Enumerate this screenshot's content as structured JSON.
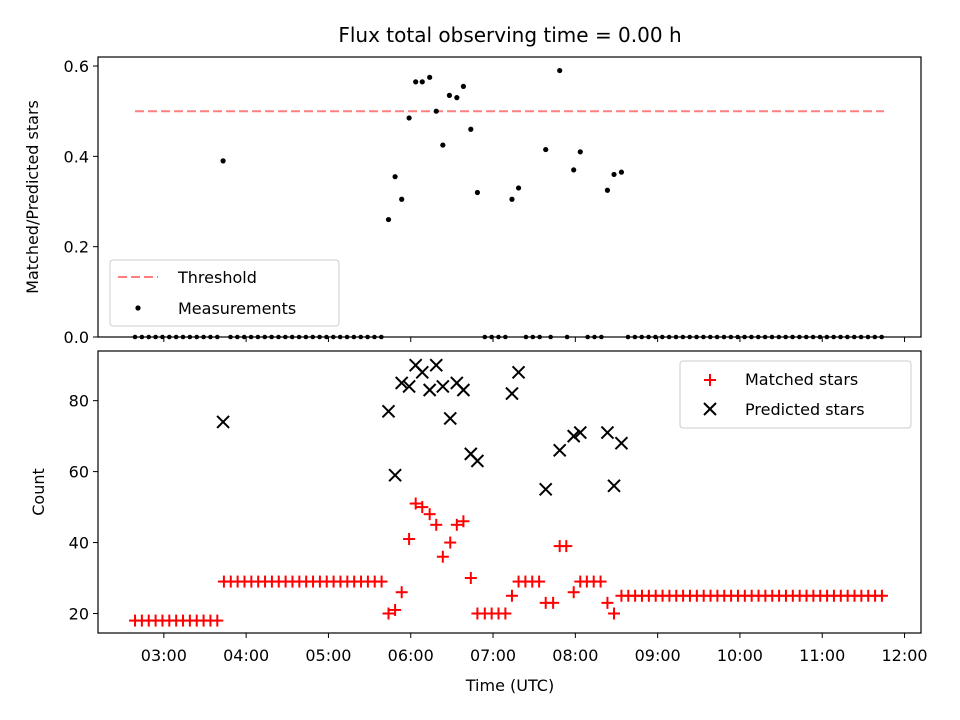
{
  "chart_data": {
    "title": "Flux total observing time = 0.00 h",
    "xlabel": "Time (UTC)",
    "x_unit": "hours UTC",
    "xlim": [
      2.2,
      12.2
    ],
    "xticks": [
      3,
      4,
      5,
      6,
      7,
      8,
      9,
      10,
      11,
      12
    ],
    "xtick_labels": [
      "03:00",
      "04:00",
      "05:00",
      "06:00",
      "07:00",
      "08:00",
      "09:00",
      "10:00",
      "11:00",
      "12:00"
    ],
    "top_panel": {
      "type": "scatter",
      "ylabel": "Matched/Predicted stars",
      "ylim": [
        0,
        0.62
      ],
      "yticks": [
        0,
        0.2,
        0.4,
        0.6
      ],
      "ytick_labels": [
        "0.0",
        "0.2",
        "0.4",
        "0.6"
      ],
      "legend_position": "lower-left",
      "threshold": {
        "name": "Threshold",
        "value": 0.5,
        "x_range": [
          2.65,
          11.75
        ],
        "color": "#ff7f7f"
      },
      "measurements": {
        "name": "Measurements",
        "color": "#000000",
        "points": [
          [
            3.72,
            0.39
          ],
          [
            5.73,
            0.26
          ],
          [
            5.81,
            0.355
          ],
          [
            5.89,
            0.305
          ],
          [
            5.98,
            0.485
          ],
          [
            6.06,
            0.565
          ],
          [
            6.14,
            0.565
          ],
          [
            6.23,
            0.575
          ],
          [
            6.31,
            0.5
          ],
          [
            6.39,
            0.425
          ],
          [
            6.47,
            0.535
          ],
          [
            6.56,
            0.53
          ],
          [
            6.64,
            0.555
          ],
          [
            6.73,
            0.46
          ],
          [
            6.81,
            0.32
          ],
          [
            7.23,
            0.305
          ],
          [
            7.31,
            0.33
          ],
          [
            7.64,
            0.415
          ],
          [
            7.81,
            0.59
          ],
          [
            7.98,
            0.37
          ],
          [
            8.06,
            0.41
          ],
          [
            8.39,
            0.325
          ],
          [
            8.47,
            0.36
          ],
          [
            8.56,
            0.365
          ]
        ],
        "zero_runs": [
          {
            "start": 2.65,
            "end": 3.65,
            "step": 0.0833
          },
          {
            "start": 3.81,
            "end": 5.65,
            "step": 0.0833
          },
          {
            "start": 6.9,
            "end": 7.15,
            "step": 0.0833
          },
          {
            "start": 7.4,
            "end": 7.6,
            "step": 0.0833
          },
          {
            "start": 7.7,
            "end": 7.75,
            "step": 0.0833
          },
          {
            "start": 7.9,
            "end": 7.95,
            "step": 0.0833
          },
          {
            "start": 8.15,
            "end": 8.32,
            "step": 0.0833
          },
          {
            "start": 8.64,
            "end": 11.75,
            "step": 0.0833
          }
        ]
      }
    },
    "bottom_panel": {
      "type": "scatter",
      "ylabel": "Count",
      "ylim": [
        14.5,
        94
      ],
      "yticks": [
        20,
        40,
        60,
        80
      ],
      "ytick_labels": [
        "20",
        "40",
        "60",
        "80"
      ],
      "legend_position": "upper-right",
      "matched": {
        "name": "Matched stars",
        "color": "#ff0000",
        "runs": [
          {
            "start": 2.65,
            "end": 3.65,
            "step": 0.0833,
            "value": 18
          },
          {
            "start": 3.73,
            "end": 5.65,
            "step": 0.0833,
            "value": 29
          },
          {
            "start": 6.9,
            "end": 7.15,
            "step": 0.0833,
            "value": 20
          },
          {
            "start": 7.31,
            "end": 7.56,
            "step": 0.0833,
            "value": 29
          },
          {
            "start": 8.14,
            "end": 8.31,
            "step": 0.0833,
            "value": 29
          },
          {
            "start": 8.56,
            "end": 11.75,
            "step": 0.0833,
            "value": 25
          }
        ],
        "points": [
          [
            5.73,
            20
          ],
          [
            5.81,
            21
          ],
          [
            5.89,
            26
          ],
          [
            5.98,
            41
          ],
          [
            6.06,
            51
          ],
          [
            6.14,
            50
          ],
          [
            6.23,
            48
          ],
          [
            6.31,
            45
          ],
          [
            6.39,
            36
          ],
          [
            6.48,
            40
          ],
          [
            6.56,
            45
          ],
          [
            6.64,
            46
          ],
          [
            6.73,
            30
          ],
          [
            6.81,
            20
          ],
          [
            7.23,
            25
          ],
          [
            7.64,
            23
          ],
          [
            7.73,
            23
          ],
          [
            7.81,
            39
          ],
          [
            7.89,
            39
          ],
          [
            7.98,
            26
          ],
          [
            8.06,
            29
          ],
          [
            8.39,
            23
          ],
          [
            8.47,
            20
          ]
        ]
      },
      "predicted": {
        "name": "Predicted stars",
        "color": "#000000",
        "points": [
          [
            3.72,
            74
          ],
          [
            5.73,
            77
          ],
          [
            5.81,
            59
          ],
          [
            5.89,
            85
          ],
          [
            5.98,
            84
          ],
          [
            6.06,
            90
          ],
          [
            6.14,
            88
          ],
          [
            6.23,
            83
          ],
          [
            6.31,
            90
          ],
          [
            6.39,
            84
          ],
          [
            6.48,
            75
          ],
          [
            6.56,
            85
          ],
          [
            6.64,
            83
          ],
          [
            6.73,
            65
          ],
          [
            6.81,
            63
          ],
          [
            7.23,
            82
          ],
          [
            7.31,
            88
          ],
          [
            7.64,
            55
          ],
          [
            7.81,
            66
          ],
          [
            7.98,
            70
          ],
          [
            8.06,
            71
          ],
          [
            8.39,
            71
          ],
          [
            8.47,
            56
          ],
          [
            8.56,
            68
          ]
        ]
      }
    }
  }
}
